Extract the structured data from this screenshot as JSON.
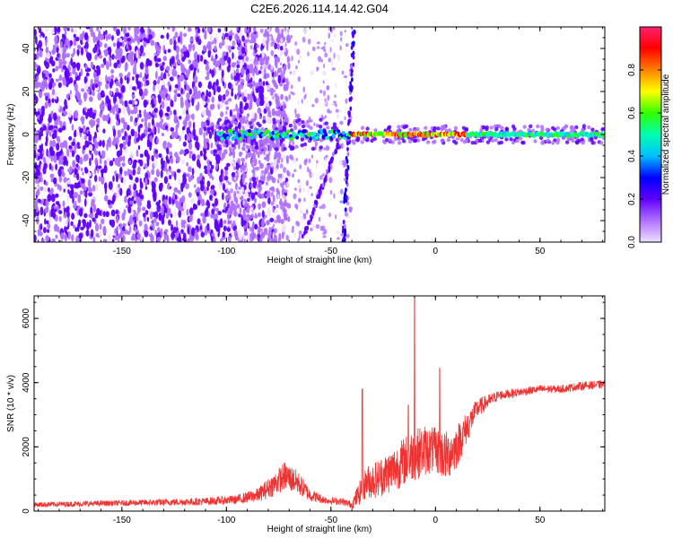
{
  "title": "C2E6.2026.114.14.42.G04",
  "chart_data": [
    {
      "type": "heatmap",
      "xlabel": "Height of straight line (km)",
      "ylabel": "Frequency (Hz)",
      "xlim": [
        -192,
        81
      ],
      "ylim": [
        -50,
        50
      ],
      "xticks": [
        -150,
        -100,
        -50,
        0,
        50
      ],
      "yticks": [
        -40,
        -20,
        0,
        20,
        40
      ],
      "colorbar": {
        "label": "Normalized spectral amplitude",
        "range": [
          0,
          1
        ],
        "ticks": [
          "0.0",
          "0.2",
          "0.4",
          "0.6",
          "0.8"
        ],
        "colormap": [
          "#f0e0ff",
          "#b070ff",
          "#6000ff",
          "#0000ff",
          "#00c0ff",
          "#00ffb0",
          "#30ff00",
          "#ffff00",
          "#ff8000",
          "#ff0000",
          "#ff2070"
        ]
      },
      "features": {
        "noise_region_x": [
          -192,
          -82
        ],
        "sparse_region_x": [
          -100,
          -40
        ],
        "signal_line_freq": 0,
        "signal_line_x": [
          -104,
          81
        ],
        "steep_trace_1": {
          "x": [
            -44,
            -39
          ],
          "y": [
            -50,
            50
          ]
        },
        "steep_trace_2": {
          "x": [
            -64,
            -45
          ],
          "y": [
            -50,
            0
          ]
        }
      }
    },
    {
      "type": "line",
      "xlabel": "Height of straight line (km)",
      "ylabel": "SNR (10 * v/v)",
      "xlim": [
        -192,
        81
      ],
      "ylim": [
        0,
        6700
      ],
      "xticks": [
        -150,
        -100,
        -50,
        0,
        50
      ],
      "yticks": [
        0,
        2000,
        4000,
        6000
      ],
      "color": "#ee3333",
      "envelope": {
        "x": [
          -192,
          -150,
          -110,
          -95,
          -85,
          -78,
          -72,
          -66,
          -60,
          -52,
          -45,
          -40,
          -38,
          -33,
          -28,
          -20,
          -12,
          -5,
          0,
          5,
          10,
          15,
          20,
          30,
          40,
          50,
          60,
          70,
          81
        ],
        "y": [
          200,
          250,
          300,
          360,
          500,
          800,
          1100,
          900,
          500,
          330,
          300,
          200,
          400,
          900,
          1000,
          1300,
          1700,
          1900,
          1900,
          1700,
          2000,
          2600,
          3200,
          3600,
          3700,
          3800,
          3800,
          3900,
          3950
        ],
        "spread": [
          80,
          90,
          120,
          140,
          220,
          350,
          450,
          380,
          200,
          110,
          110,
          120,
          300,
          500,
          600,
          700,
          800,
          800,
          700,
          800,
          700,
          500,
          300,
          150,
          130,
          120,
          120,
          130,
          130
        ]
      },
      "spikes": [
        {
          "x": -35,
          "y": 3800
        },
        {
          "x": -13,
          "y": 3300
        },
        {
          "x": -10,
          "y": 6700
        },
        {
          "x": 2,
          "y": 4450
        }
      ]
    }
  ]
}
